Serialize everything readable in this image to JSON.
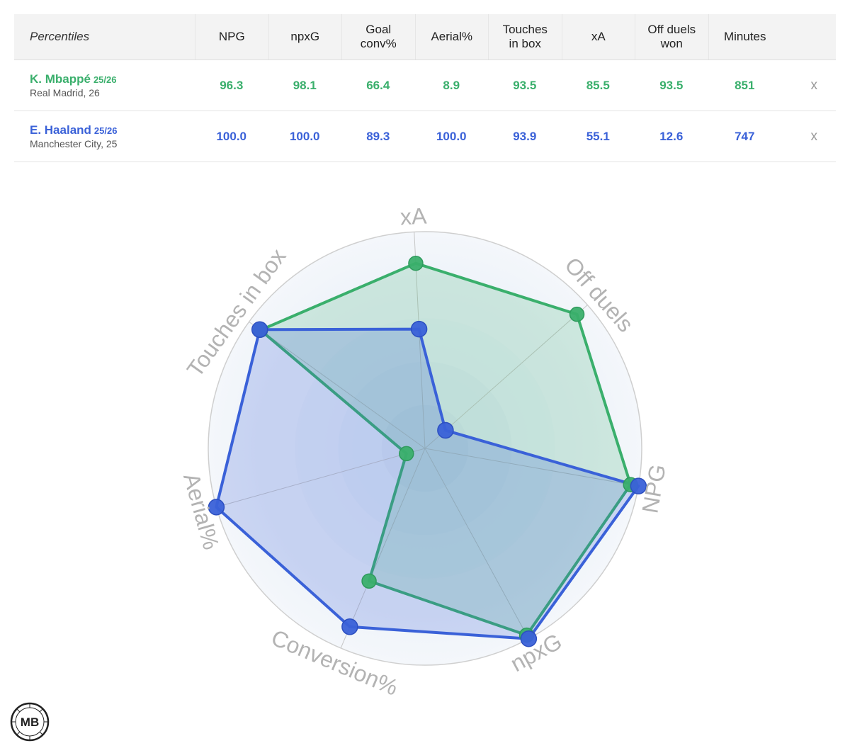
{
  "table": {
    "header_label": "Percentiles",
    "columns": [
      "NPG",
      "npxG",
      "Goal\nconv%",
      "Aerial%",
      "Touches\nin box",
      "xA",
      "Off duels\nwon",
      "Minutes"
    ],
    "remove_label": "x"
  },
  "players": [
    {
      "name": "K. Mbappé",
      "season": "25/26",
      "team": "Real Madrid, 26",
      "color": "#3aaf6c",
      "values": [
        "96.3",
        "98.1",
        "66.4",
        "8.9",
        "93.5",
        "85.5",
        "93.5",
        "851"
      ]
    },
    {
      "name": "E. Haaland",
      "season": "25/26",
      "team": "Manchester City, 25",
      "color": "#3a61d8",
      "values": [
        "100.0",
        "100.0",
        "89.3",
        "100.0",
        "93.9",
        "55.1",
        "12.6",
        "747"
      ]
    }
  ],
  "chart_data": {
    "type": "radar",
    "axes": [
      "NPG",
      "npxG",
      "Conversion%",
      "Aerial%",
      "Touches in box",
      "xA",
      "Off duels"
    ],
    "range": [
      0,
      100
    ],
    "series": [
      {
        "name": "K. Mbappé",
        "color": "#3aaf6c",
        "values": [
          96.3,
          98.1,
          66.4,
          8.9,
          93.5,
          85.5,
          93.5
        ]
      },
      {
        "name": "E. Haaland",
        "color": "#3a61d8",
        "values": [
          100.0,
          100.0,
          89.3,
          100.0,
          93.9,
          55.1,
          12.6
        ]
      }
    ]
  },
  "logo": {
    "text": "MB"
  }
}
